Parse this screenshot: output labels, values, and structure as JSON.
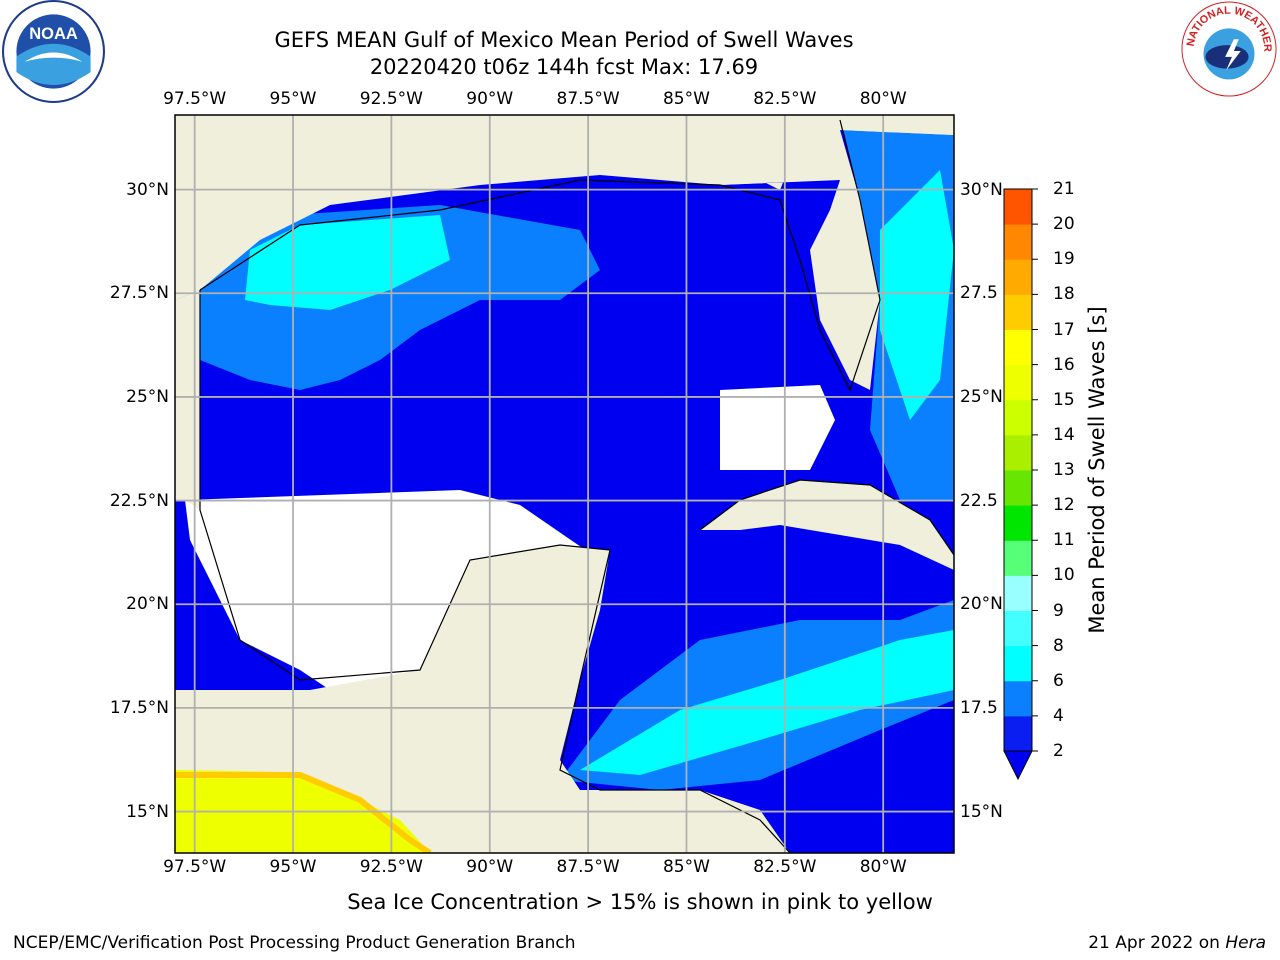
{
  "title": {
    "line1": "GEFS MEAN Gulf of Mexico Mean Period of Swell Waves",
    "line2": "20220420 t06z 144h fcst   Max: 17.69"
  },
  "logos": {
    "left": "noaa-logo",
    "right": "national-weather-service-logo",
    "left_text": "NOAA",
    "right_text": "NATIONAL WEATHER SERVICE"
  },
  "map": {
    "lon_ticks": [
      "97.5°W",
      "95°W",
      "92.5°W",
      "90°W",
      "87.5°W",
      "85°W",
      "82.5°W",
      "80°W"
    ],
    "lon_values": [
      -97.5,
      -95,
      -92.5,
      -90,
      -87.5,
      -85,
      -82.5,
      -80
    ],
    "lat_ticks_left": [
      "30°N",
      "27.5°N",
      "25°N",
      "22.5°N",
      "20°N",
      "17.5°N",
      "15°N"
    ],
    "lat_ticks_right": [
      "30°N",
      "27.5",
      "25°N",
      "22.5",
      "20°N",
      "17.5",
      "15°N"
    ],
    "lat_values": [
      30,
      27.5,
      25,
      22.5,
      20,
      17.5,
      15
    ],
    "lon_range": [
      -98,
      -78.2
    ],
    "lat_range": [
      14,
      31.8
    ],
    "land_color": "#efefdc",
    "ocean_missing_color": "#ffffff",
    "grid_color": "#b0b0b0"
  },
  "colorbar": {
    "label": "Mean Period of Swell Waves [s]",
    "ticks": [
      "2",
      "4",
      "6",
      "8",
      "9",
      "10",
      "11",
      "12",
      "13",
      "14",
      "15",
      "16",
      "17",
      "18",
      "19",
      "20",
      "21"
    ],
    "colors": [
      "#0a1ef2",
      "#0a80ff",
      "#00ffff",
      "#44ffff",
      "#99ffff",
      "#55ff77",
      "#00e600",
      "#66e600",
      "#aaee00",
      "#ccff00",
      "#eeff00",
      "#ffff00",
      "#ffcc00",
      "#ffaa00",
      "#ff8800",
      "#ff5500",
      "#ff2200",
      "#ff0000"
    ],
    "under_color": "#0000f0"
  },
  "note": "Sea Ice Concentration > 15% is shown in pink to yellow",
  "footer": {
    "left": "NCEP/EMC/Verification Post Processing Product Generation Branch",
    "right_prefix": "21 Apr 2022 on ",
    "right_machine": "Hera"
  }
}
